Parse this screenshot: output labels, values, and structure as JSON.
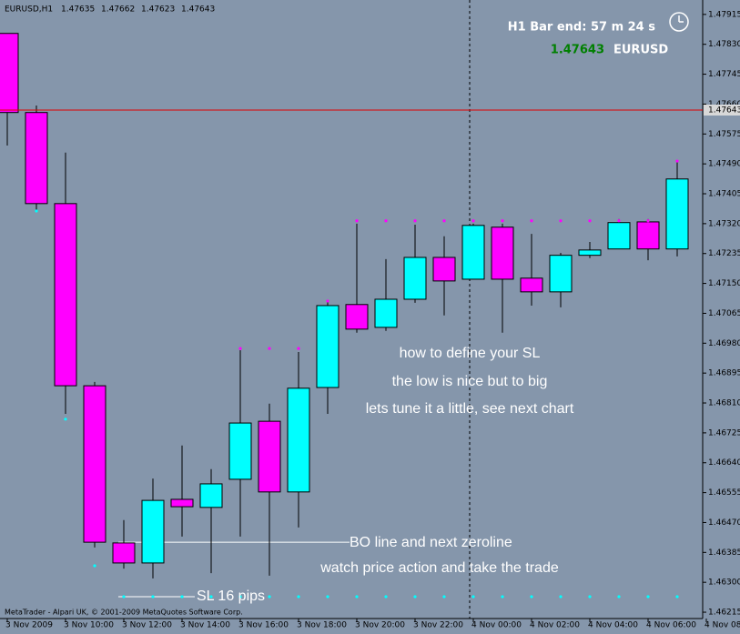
{
  "chart_data": {
    "type": "candlestick",
    "title": "EURUSD,H1",
    "header_ohlc": [
      1.47635,
      1.47662,
      1.47623,
      1.47643
    ],
    "timer": "H1 Bar end: 57 m 24 s",
    "last_price": 1.47643,
    "symbol": "EURUSD",
    "footer": "MetaTrader - Alpari UK, © 2001-2009 MetaQuotes Software Corp.",
    "annotations": [
      "how to define your SL",
      "the low is nice but to big",
      "lets tune it a little, see next chart",
      "BO line and next zeroline",
      "watch price action and take the trade",
      "SL 16 pips"
    ],
    "level_lines": [
      1.46414,
      1.46259
    ],
    "categories": [
      "3 Nov 2009",
      null,
      "3 Nov 10:00",
      null,
      "3 Nov 12:00",
      null,
      "3 Nov 14:00",
      null,
      "3 Nov 16:00",
      null,
      "3 Nov 18:00",
      null,
      "3 Nov 20:00",
      null,
      "3 Nov 22:00",
      null,
      "4 Nov 00:00",
      null,
      "4 Nov 02:00",
      null,
      "4 Nov 04:00",
      null,
      "4 Nov 06:00",
      null,
      "4 Nov 08"
    ],
    "open": [
      1.47861,
      1.47636,
      1.47377,
      1.46859,
      1.46412,
      1.46355,
      1.46536,
      1.46513,
      1.46593,
      1.46758,
      1.46557,
      1.46854,
      1.4709,
      1.47025,
      1.47105,
      1.47224,
      1.47162,
      1.4731,
      1.47165,
      1.47126,
      1.4723,
      1.47248,
      1.47325,
      1.47248,
      null
    ],
    "high": [
      1.47861,
      1.47656,
      1.47522,
      1.4687,
      1.46477,
      1.46595,
      1.46689,
      1.46622,
      1.4696,
      1.46808,
      1.46955,
      1.47103,
      1.4732,
      1.47219,
      1.47317,
      1.47284,
      1.4732,
      1.4732,
      1.47291,
      1.47237,
      1.47268,
      1.47333,
      1.47333,
      1.47498,
      null
    ],
    "low": [
      1.47542,
      1.47356,
      1.46779,
      1.46399,
      1.46339,
      1.46311,
      1.4643,
      1.46326,
      1.4643,
      1.46319,
      1.46456,
      1.46779,
      1.4701,
      1.47015,
      1.47095,
      1.47059,
      1.47162,
      1.4701,
      1.47087,
      1.47082,
      1.47222,
      1.47248,
      1.47216,
      1.47227,
      null
    ],
    "close": [
      1.47636,
      1.47377,
      1.46859,
      1.46414,
      1.46355,
      1.46533,
      1.46515,
      1.4658,
      1.46753,
      1.46557,
      1.46852,
      1.47087,
      1.4702,
      1.47105,
      1.47224,
      1.47157,
      1.47315,
      1.47162,
      1.47126,
      1.4723,
      1.47245,
      1.47323,
      1.47248,
      1.47447,
      null
    ],
    "up_color": "#00ffff",
    "down_color": "#ff00ff",
    "markers": [
      {
        "color": "#ff00ff",
        "values": [
          null,
          null,
          null,
          null,
          null,
          null,
          null,
          null,
          1.46965,
          1.46965,
          1.46965,
          1.471,
          1.47328,
          1.47328,
          1.47328,
          1.47328,
          1.47328,
          1.47328,
          1.47328,
          1.47328,
          1.47328,
          1.47328,
          1.47328,
          1.47498,
          null
        ]
      },
      {
        "color": "#00ffff",
        "values": [
          null,
          1.47356,
          1.46764,
          1.46347,
          1.46259,
          1.46259,
          1.46259,
          1.46259,
          1.46259,
          1.46259,
          1.46259,
          1.46259,
          1.46259,
          1.46259,
          1.46259,
          1.46259,
          1.46259,
          1.46259,
          1.46259,
          1.46259,
          1.46259,
          1.46259,
          1.46259,
          1.46259,
          null
        ]
      }
    ],
    "ylim": [
      1.46197,
      1.47956
    ],
    "yticks": [
      {
        "value": 1.47915,
        "label": "1.47915"
      },
      {
        "value": 1.4783,
        "label": "1.47830"
      },
      {
        "value": 1.47745,
        "label": "1.47745"
      },
      {
        "value": 1.4766,
        "label": "1.47660"
      },
      {
        "value": 1.47575,
        "label": "1.47575"
      },
      {
        "value": 1.4749,
        "label": "1.47490"
      },
      {
        "value": 1.47405,
        "label": "1.47405"
      },
      {
        "value": 1.4732,
        "label": "1.47320"
      },
      {
        "value": 1.47235,
        "label": "1.47235"
      },
      {
        "value": 1.4715,
        "label": "1.47150"
      },
      {
        "value": 1.47065,
        "label": "1.47065"
      },
      {
        "value": 1.4698,
        "label": "1.46980"
      },
      {
        "value": 1.46895,
        "label": "1.46895"
      },
      {
        "value": 1.4681,
        "label": "1.46810"
      },
      {
        "value": 1.46725,
        "label": "1.46725"
      },
      {
        "value": 1.4664,
        "label": "1.46640"
      },
      {
        "value": 1.46555,
        "label": "1.46555"
      },
      {
        "value": 1.4647,
        "label": "1.46470"
      },
      {
        "value": 1.46385,
        "label": "1.46385"
      },
      {
        "value": 1.463,
        "label": "1.46300"
      },
      {
        "value": 1.46215,
        "label": "1.46215"
      }
    ]
  }
}
